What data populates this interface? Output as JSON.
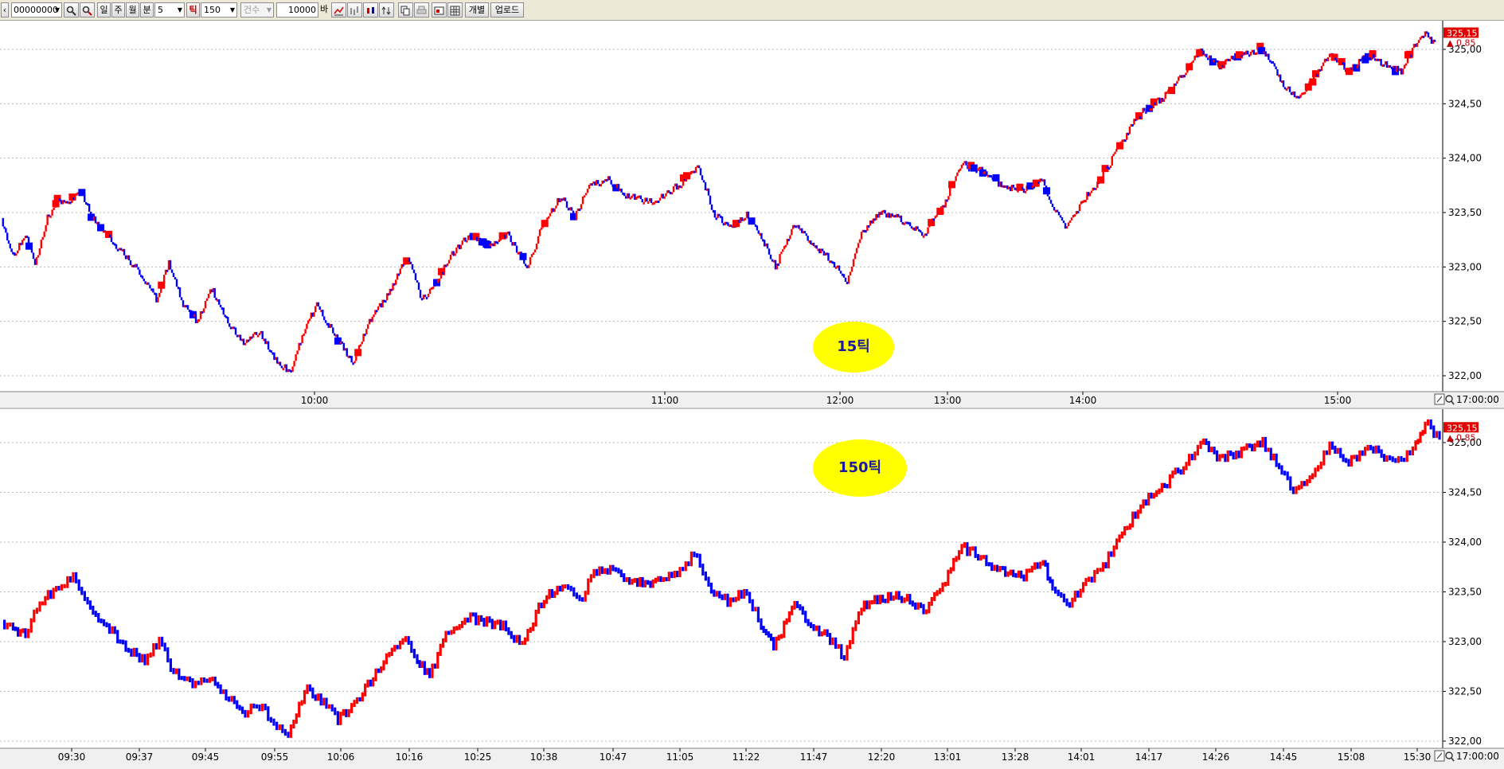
{
  "toolbar": {
    "code_value": "00000000",
    "period_day": "일",
    "period_week": "주",
    "period_month": "월",
    "period_minute": "분",
    "minute_value": "5",
    "tick_label": "틱",
    "tick_value": "150",
    "count_label": "건수",
    "quantity_value": "10000",
    "quantity_unit": "바",
    "individual_label": "개별",
    "upload_label": "업로드"
  },
  "colors": {
    "up": "#ff0000",
    "down": "#0000ff",
    "bubble": "#ffff00",
    "price_box": "#e00000"
  },
  "chart_data": [
    {
      "type": "candlestick",
      "label": "15틱",
      "y_ticks": [
        "325,00",
        "324,50",
        "324,00",
        "323,50",
        "323,00",
        "322,50",
        "322,00"
      ],
      "ylim": [
        321.9,
        325.25
      ],
      "x_ticks": [
        "10:00",
        "11:00",
        "12:00",
        "13:00",
        "14:00",
        "15:00"
      ],
      "x_end_label": "17:00:00",
      "last_price": "325,15",
      "change": "0,85",
      "change_dir": "up",
      "grid": true,
      "bar_style": "dense-ticks-with-square-markers",
      "path": [
        {
          "x": 0,
          "y": 323.45
        },
        {
          "x": 12,
          "y": 323.1
        },
        {
          "x": 25,
          "y": 323.3
        },
        {
          "x": 35,
          "y": 323.0
        },
        {
          "x": 48,
          "y": 323.45
        },
        {
          "x": 58,
          "y": 323.6
        },
        {
          "x": 72,
          "y": 323.6
        },
        {
          "x": 82,
          "y": 323.72
        },
        {
          "x": 95,
          "y": 323.45
        },
        {
          "x": 110,
          "y": 323.3
        },
        {
          "x": 125,
          "y": 323.15
        },
        {
          "x": 140,
          "y": 323.0
        },
        {
          "x": 152,
          "y": 322.85
        },
        {
          "x": 162,
          "y": 322.7
        },
        {
          "x": 175,
          "y": 323.05
        },
        {
          "x": 190,
          "y": 322.65
        },
        {
          "x": 205,
          "y": 322.5
        },
        {
          "x": 220,
          "y": 322.8
        },
        {
          "x": 240,
          "y": 322.45
        },
        {
          "x": 255,
          "y": 322.3
        },
        {
          "x": 270,
          "y": 322.4
        },
        {
          "x": 290,
          "y": 322.1
        },
        {
          "x": 303,
          "y": 322.05
        },
        {
          "x": 318,
          "y": 322.45
        },
        {
          "x": 330,
          "y": 322.65
        },
        {
          "x": 350,
          "y": 322.35
        },
        {
          "x": 368,
          "y": 322.12
        },
        {
          "x": 385,
          "y": 322.5
        },
        {
          "x": 405,
          "y": 322.75
        },
        {
          "x": 425,
          "y": 323.1
        },
        {
          "x": 440,
          "y": 322.7
        },
        {
          "x": 455,
          "y": 322.85
        },
        {
          "x": 470,
          "y": 323.1
        },
        {
          "x": 490,
          "y": 323.3
        },
        {
          "x": 510,
          "y": 323.2
        },
        {
          "x": 530,
          "y": 323.3
        },
        {
          "x": 550,
          "y": 323.0
        },
        {
          "x": 565,
          "y": 323.35
        },
        {
          "x": 585,
          "y": 323.65
        },
        {
          "x": 600,
          "y": 323.45
        },
        {
          "x": 615,
          "y": 323.75
        },
        {
          "x": 635,
          "y": 323.8
        },
        {
          "x": 655,
          "y": 323.65
        },
        {
          "x": 680,
          "y": 323.6
        },
        {
          "x": 700,
          "y": 323.7
        },
        {
          "x": 715,
          "y": 323.8
        },
        {
          "x": 730,
          "y": 323.92
        },
        {
          "x": 745,
          "y": 323.5
        },
        {
          "x": 765,
          "y": 323.35
        },
        {
          "x": 780,
          "y": 323.5
        },
        {
          "x": 800,
          "y": 323.2
        },
        {
          "x": 810,
          "y": 323.0
        },
        {
          "x": 830,
          "y": 323.4
        },
        {
          "x": 850,
          "y": 323.2
        },
        {
          "x": 870,
          "y": 323.05
        },
        {
          "x": 885,
          "y": 322.85
        },
        {
          "x": 900,
          "y": 323.3
        },
        {
          "x": 920,
          "y": 323.5
        },
        {
          "x": 940,
          "y": 323.45
        },
        {
          "x": 965,
          "y": 323.3
        },
        {
          "x": 985,
          "y": 323.55
        },
        {
          "x": 1005,
          "y": 323.95
        },
        {
          "x": 1025,
          "y": 323.9
        },
        {
          "x": 1045,
          "y": 323.75
        },
        {
          "x": 1070,
          "y": 323.7
        },
        {
          "x": 1090,
          "y": 323.8
        },
        {
          "x": 1100,
          "y": 323.55
        },
        {
          "x": 1115,
          "y": 323.35
        },
        {
          "x": 1130,
          "y": 323.6
        },
        {
          "x": 1150,
          "y": 323.8
        },
        {
          "x": 1170,
          "y": 324.1
        },
        {
          "x": 1190,
          "y": 324.4
        },
        {
          "x": 1215,
          "y": 324.55
        },
        {
          "x": 1235,
          "y": 324.75
        },
        {
          "x": 1255,
          "y": 325.0
        },
        {
          "x": 1275,
          "y": 324.85
        },
        {
          "x": 1295,
          "y": 324.95
        },
        {
          "x": 1320,
          "y": 325.0
        },
        {
          "x": 1340,
          "y": 324.7
        },
        {
          "x": 1355,
          "y": 324.55
        },
        {
          "x": 1375,
          "y": 324.75
        },
        {
          "x": 1390,
          "y": 324.95
        },
        {
          "x": 1410,
          "y": 324.8
        },
        {
          "x": 1430,
          "y": 324.95
        },
        {
          "x": 1450,
          "y": 324.85
        },
        {
          "x": 1465,
          "y": 324.8
        },
        {
          "x": 1480,
          "y": 325.05
        },
        {
          "x": 1490,
          "y": 325.15
        },
        {
          "x": 1500,
          "y": 325.05
        }
      ]
    },
    {
      "type": "candlestick",
      "label": "150틱",
      "y_ticks": [
        "325,00",
        "324,50",
        "324,00",
        "323,50",
        "323,00",
        "322,50",
        "322,00"
      ],
      "ylim": [
        321.92,
        325.2
      ],
      "x_ticks": [
        "09:30",
        "09:37",
        "09:45",
        "09:55",
        "10:06",
        "10:16",
        "10:25",
        "10:38",
        "10:47",
        "11:05",
        "11:22",
        "11:47",
        "12:20",
        "13:01",
        "13:28",
        "14:01",
        "14:17",
        "14:26",
        "14:45",
        "15:08",
        "15:30"
      ],
      "x_end_label": "17:00:00",
      "last_price": "325,15",
      "change": "0,85",
      "change_dir": "up",
      "grid": true,
      "bar_style": "dense-ticks",
      "path": [
        {
          "x": 0,
          "y": 323.2
        },
        {
          "x": 12,
          "y": 323.15
        },
        {
          "x": 25,
          "y": 323.05
        },
        {
          "x": 40,
          "y": 323.4
        },
        {
          "x": 60,
          "y": 323.55
        },
        {
          "x": 75,
          "y": 323.65
        },
        {
          "x": 90,
          "y": 323.4
        },
        {
          "x": 110,
          "y": 323.15
        },
        {
          "x": 130,
          "y": 322.95
        },
        {
          "x": 150,
          "y": 322.8
        },
        {
          "x": 165,
          "y": 323.0
        },
        {
          "x": 180,
          "y": 322.7
        },
        {
          "x": 200,
          "y": 322.55
        },
        {
          "x": 215,
          "y": 322.65
        },
        {
          "x": 235,
          "y": 322.45
        },
        {
          "x": 255,
          "y": 322.3
        },
        {
          "x": 270,
          "y": 322.35
        },
        {
          "x": 285,
          "y": 322.2
        },
        {
          "x": 300,
          "y": 322.05
        },
        {
          "x": 320,
          "y": 322.55
        },
        {
          "x": 340,
          "y": 322.35
        },
        {
          "x": 352,
          "y": 322.2
        },
        {
          "x": 375,
          "y": 322.45
        },
        {
          "x": 400,
          "y": 322.8
        },
        {
          "x": 420,
          "y": 323.05
        },
        {
          "x": 435,
          "y": 322.8
        },
        {
          "x": 448,
          "y": 322.65
        },
        {
          "x": 465,
          "y": 323.05
        },
        {
          "x": 485,
          "y": 323.25
        },
        {
          "x": 505,
          "y": 323.2
        },
        {
          "x": 525,
          "y": 323.15
        },
        {
          "x": 545,
          "y": 322.95
        },
        {
          "x": 565,
          "y": 323.4
        },
        {
          "x": 590,
          "y": 323.6
        },
        {
          "x": 605,
          "y": 323.4
        },
        {
          "x": 620,
          "y": 323.7
        },
        {
          "x": 640,
          "y": 323.75
        },
        {
          "x": 660,
          "y": 323.6
        },
        {
          "x": 690,
          "y": 323.6
        },
        {
          "x": 710,
          "y": 323.7
        },
        {
          "x": 725,
          "y": 323.9
        },
        {
          "x": 740,
          "y": 323.55
        },
        {
          "x": 760,
          "y": 323.4
        },
        {
          "x": 780,
          "y": 323.5
        },
        {
          "x": 795,
          "y": 323.15
        },
        {
          "x": 808,
          "y": 322.95
        },
        {
          "x": 830,
          "y": 323.35
        },
        {
          "x": 850,
          "y": 323.15
        },
        {
          "x": 870,
          "y": 323.0
        },
        {
          "x": 882,
          "y": 322.82
        },
        {
          "x": 900,
          "y": 323.35
        },
        {
          "x": 925,
          "y": 323.45
        },
        {
          "x": 945,
          "y": 323.45
        },
        {
          "x": 965,
          "y": 323.3
        },
        {
          "x": 985,
          "y": 323.55
        },
        {
          "x": 1005,
          "y": 323.95
        },
        {
          "x": 1025,
          "y": 323.85
        },
        {
          "x": 1045,
          "y": 323.7
        },
        {
          "x": 1070,
          "y": 323.65
        },
        {
          "x": 1090,
          "y": 323.8
        },
        {
          "x": 1100,
          "y": 323.55
        },
        {
          "x": 1115,
          "y": 323.35
        },
        {
          "x": 1135,
          "y": 323.6
        },
        {
          "x": 1150,
          "y": 323.7
        },
        {
          "x": 1170,
          "y": 324.05
        },
        {
          "x": 1195,
          "y": 324.4
        },
        {
          "x": 1220,
          "y": 324.6
        },
        {
          "x": 1240,
          "y": 324.8
        },
        {
          "x": 1255,
          "y": 325.0
        },
        {
          "x": 1275,
          "y": 324.85
        },
        {
          "x": 1295,
          "y": 324.9
        },
        {
          "x": 1320,
          "y": 325.0
        },
        {
          "x": 1340,
          "y": 324.7
        },
        {
          "x": 1355,
          "y": 324.5
        },
        {
          "x": 1375,
          "y": 324.75
        },
        {
          "x": 1390,
          "y": 324.95
        },
        {
          "x": 1410,
          "y": 324.8
        },
        {
          "x": 1430,
          "y": 324.95
        },
        {
          "x": 1450,
          "y": 324.85
        },
        {
          "x": 1465,
          "y": 324.8
        },
        {
          "x": 1480,
          "y": 325.0
        },
        {
          "x": 1490,
          "y": 325.2
        },
        {
          "x": 1505,
          "y": 325.05
        }
      ]
    }
  ]
}
